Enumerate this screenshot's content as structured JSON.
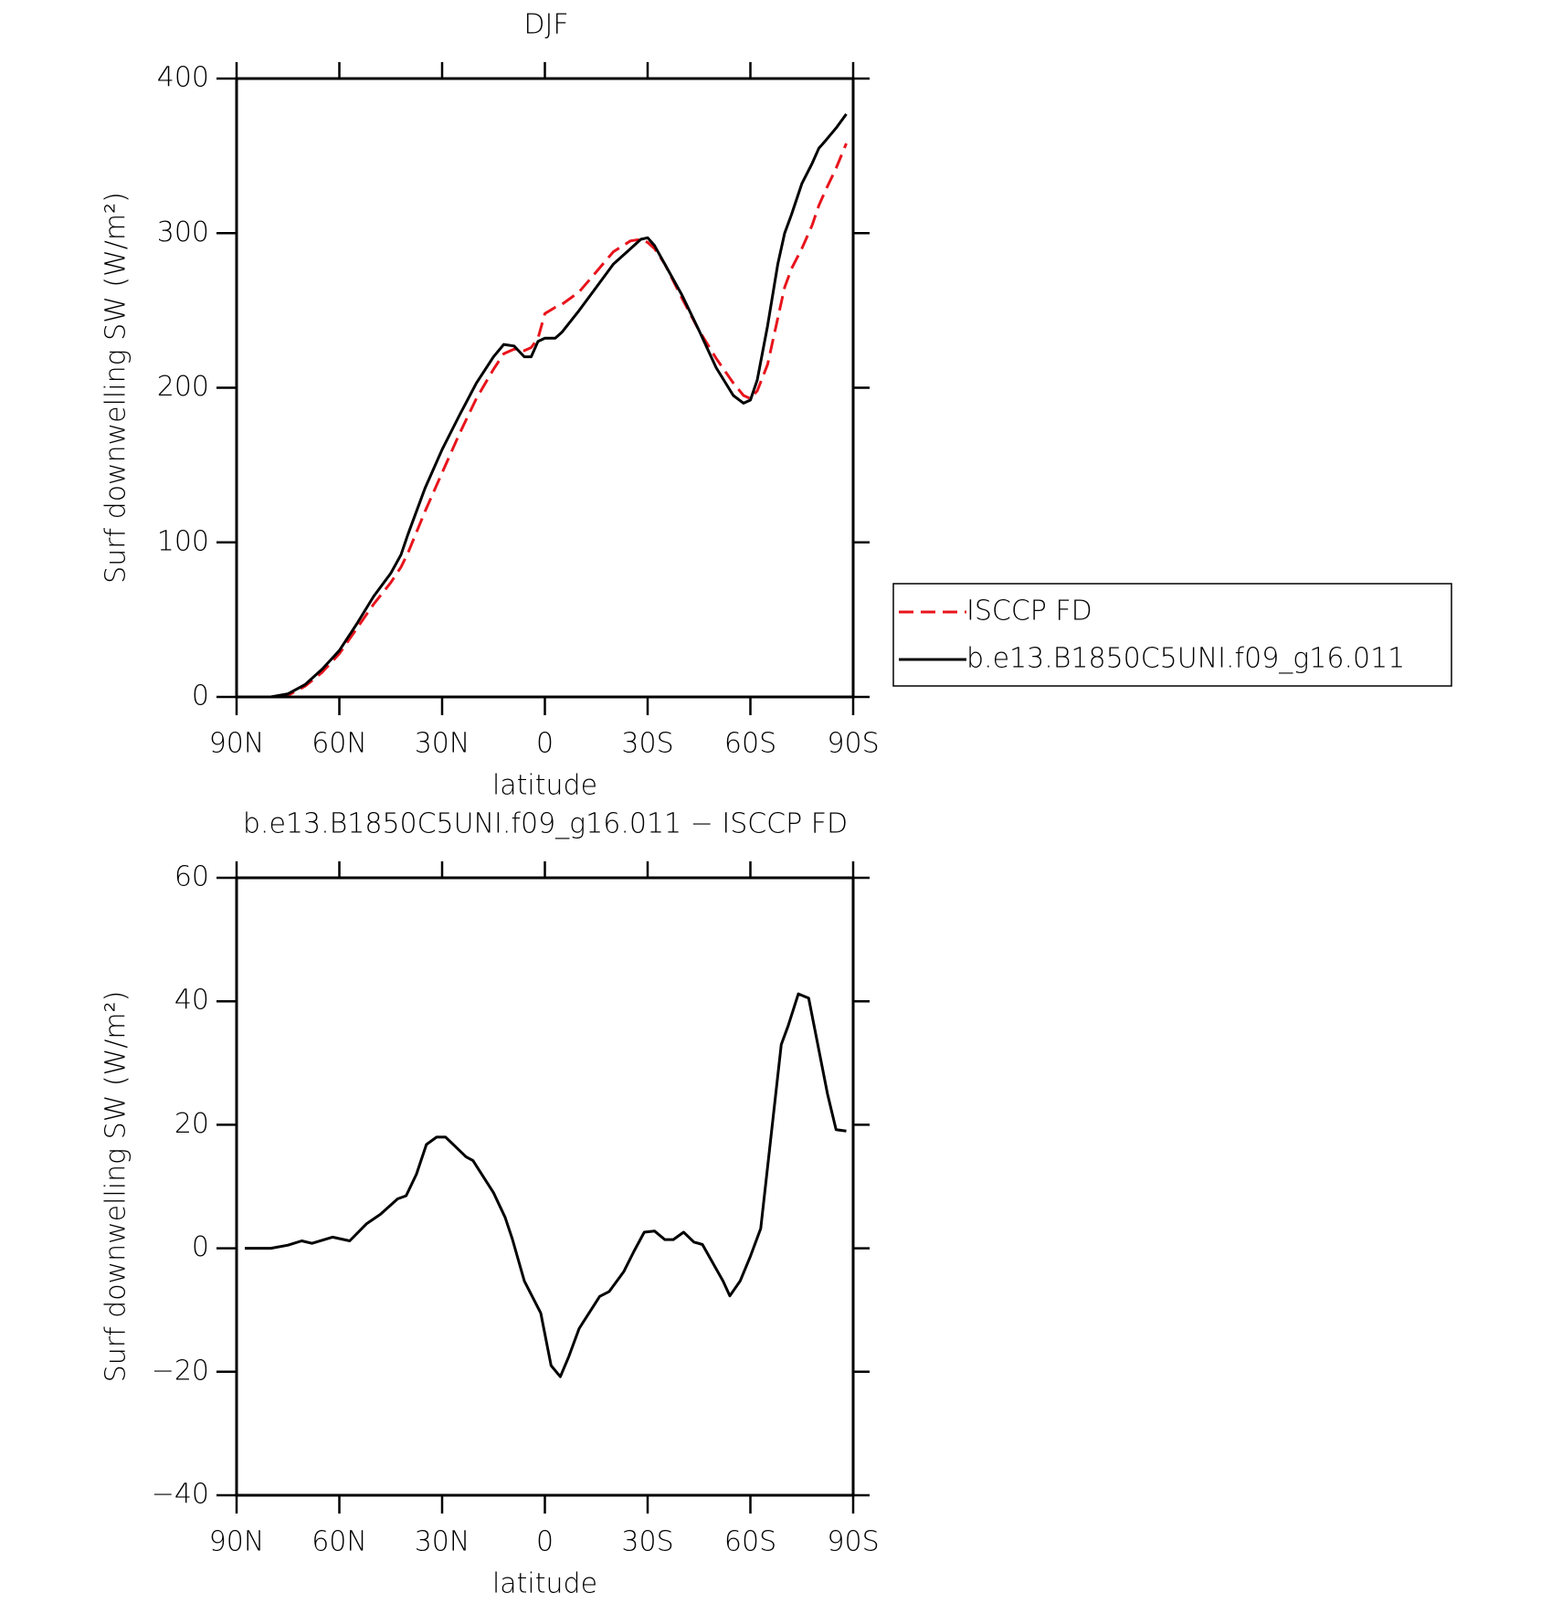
{
  "chart_data": [
    {
      "type": "line",
      "title": "DJF",
      "xlabel": "latitude",
      "ylabel": "Surf downwelling SW (W/m²)",
      "xlim": [
        90,
        -90
      ],
      "ylim": [
        0,
        400
      ],
      "xticks": [
        {
          "value": 90,
          "label": "90N"
        },
        {
          "value": 60,
          "label": "60N"
        },
        {
          "value": 30,
          "label": "30N"
        },
        0,
        {
          "value": -30,
          "label": "30S"
        },
        {
          "value": -60,
          "label": "60S"
        },
        {
          "value": -90,
          "label": "90S"
        }
      ],
      "yticks": [
        0,
        100,
        200,
        300,
        400
      ],
      "legend": "right",
      "x": [
        90,
        80,
        75,
        70,
        65,
        60,
        55,
        50,
        45,
        42,
        40,
        35,
        30,
        25,
        20,
        15,
        12,
        9,
        6,
        4,
        2,
        0,
        -3,
        -5,
        -10,
        -15,
        -20,
        -25,
        -28,
        -30,
        -32,
        -35,
        -40,
        -45,
        -50,
        -55,
        -58,
        -60,
        -62,
        -65,
        -68,
        -70,
        -72,
        -75,
        -78,
        -80,
        -82,
        -85,
        -88
      ],
      "series": [
        {
          "name": "ISCCP FD",
          "color": "#e8141c",
          "dash": true,
          "values": [
            0,
            0,
            1,
            7,
            16,
            28,
            44,
            60,
            74,
            84,
            93,
            120,
            145,
            170,
            193,
            212,
            222,
            225,
            224,
            226,
            232,
            248,
            252,
            254,
            262,
            275,
            288,
            295,
            296,
            294,
            290,
            280,
            258,
            237,
            219,
            203,
            195,
            193,
            198,
            215,
            245,
            265,
            277,
            290,
            305,
            318,
            328,
            342,
            358
          ]
        },
        {
          "name": "b.e13.B1850C5UNI.f09_g16.011",
          "color": "#000000",
          "dash": false,
          "values": [
            0,
            0,
            2,
            8,
            18,
            30,
            47,
            65,
            80,
            92,
            105,
            135,
            160,
            182,
            203,
            220,
            228,
            227,
            220,
            220,
            230,
            232,
            232,
            236,
            250,
            265,
            280,
            290,
            296,
            297,
            292,
            280,
            260,
            237,
            213,
            195,
            190,
            192,
            205,
            240,
            280,
            300,
            312,
            332,
            345,
            355,
            360,
            368,
            377
          ]
        }
      ]
    },
    {
      "type": "line",
      "title": "b.e13.B1850C5UNI.f09_g16.011 − ISCCP FD",
      "xlabel": "latitude",
      "ylabel": "Surf downwelling SW (W/m²)",
      "xlim": [
        90,
        -90
      ],
      "ylim": [
        -40,
        60
      ],
      "xticks": [
        {
          "value": 90,
          "label": "90N"
        },
        {
          "value": 60,
          "label": "60N"
        },
        {
          "value": 30,
          "label": "30N"
        },
        0,
        {
          "value": -30,
          "label": "30S"
        },
        {
          "value": -60,
          "label": "60S"
        },
        {
          "value": -90,
          "label": "90S"
        }
      ],
      "yticks": [
        {
          "value": -40,
          "label": "−40"
        },
        {
          "value": -20,
          "label": "−20"
        },
        0,
        20,
        40,
        60
      ],
      "x": [
        87.6,
        80,
        75,
        71,
        68,
        62,
        57,
        52,
        48,
        43,
        40.5,
        37.5,
        34.6,
        31.6,
        29,
        23,
        21,
        15,
        11.6,
        9.5,
        6,
        1.2,
        -1.8,
        -4.5,
        -7,
        -10,
        -16,
        -18.8,
        -23,
        -26,
        -29,
        -32,
        -35,
        -37.5,
        -40.5,
        -43.5,
        -46,
        -52,
        -54,
        -57,
        -60,
        -63,
        -69,
        -71,
        -74,
        -77,
        -79.5,
        -82.5,
        -85,
        -88
      ],
      "series": [
        {
          "color": "#000000",
          "dash": false,
          "values": [
            0,
            0,
            0.5,
            1.2,
            0.8,
            1.8,
            1.2,
            4,
            5.5,
            8,
            8.5,
            12,
            16.8,
            18,
            18,
            14.8,
            14.2,
            9,
            5,
            1.5,
            -5.3,
            -10.5,
            -19,
            -20.8,
            -17.5,
            -13,
            -7.8,
            -7,
            -3.8,
            -0.5,
            2.6,
            2.8,
            1.4,
            1.4,
            2.6,
            1,
            0.6,
            -5.3,
            -7.7,
            -5.3,
            -1.3,
            3.2,
            33,
            36,
            41.2,
            40.5,
            33.5,
            25,
            19.2,
            19
          ]
        }
      ]
    }
  ]
}
